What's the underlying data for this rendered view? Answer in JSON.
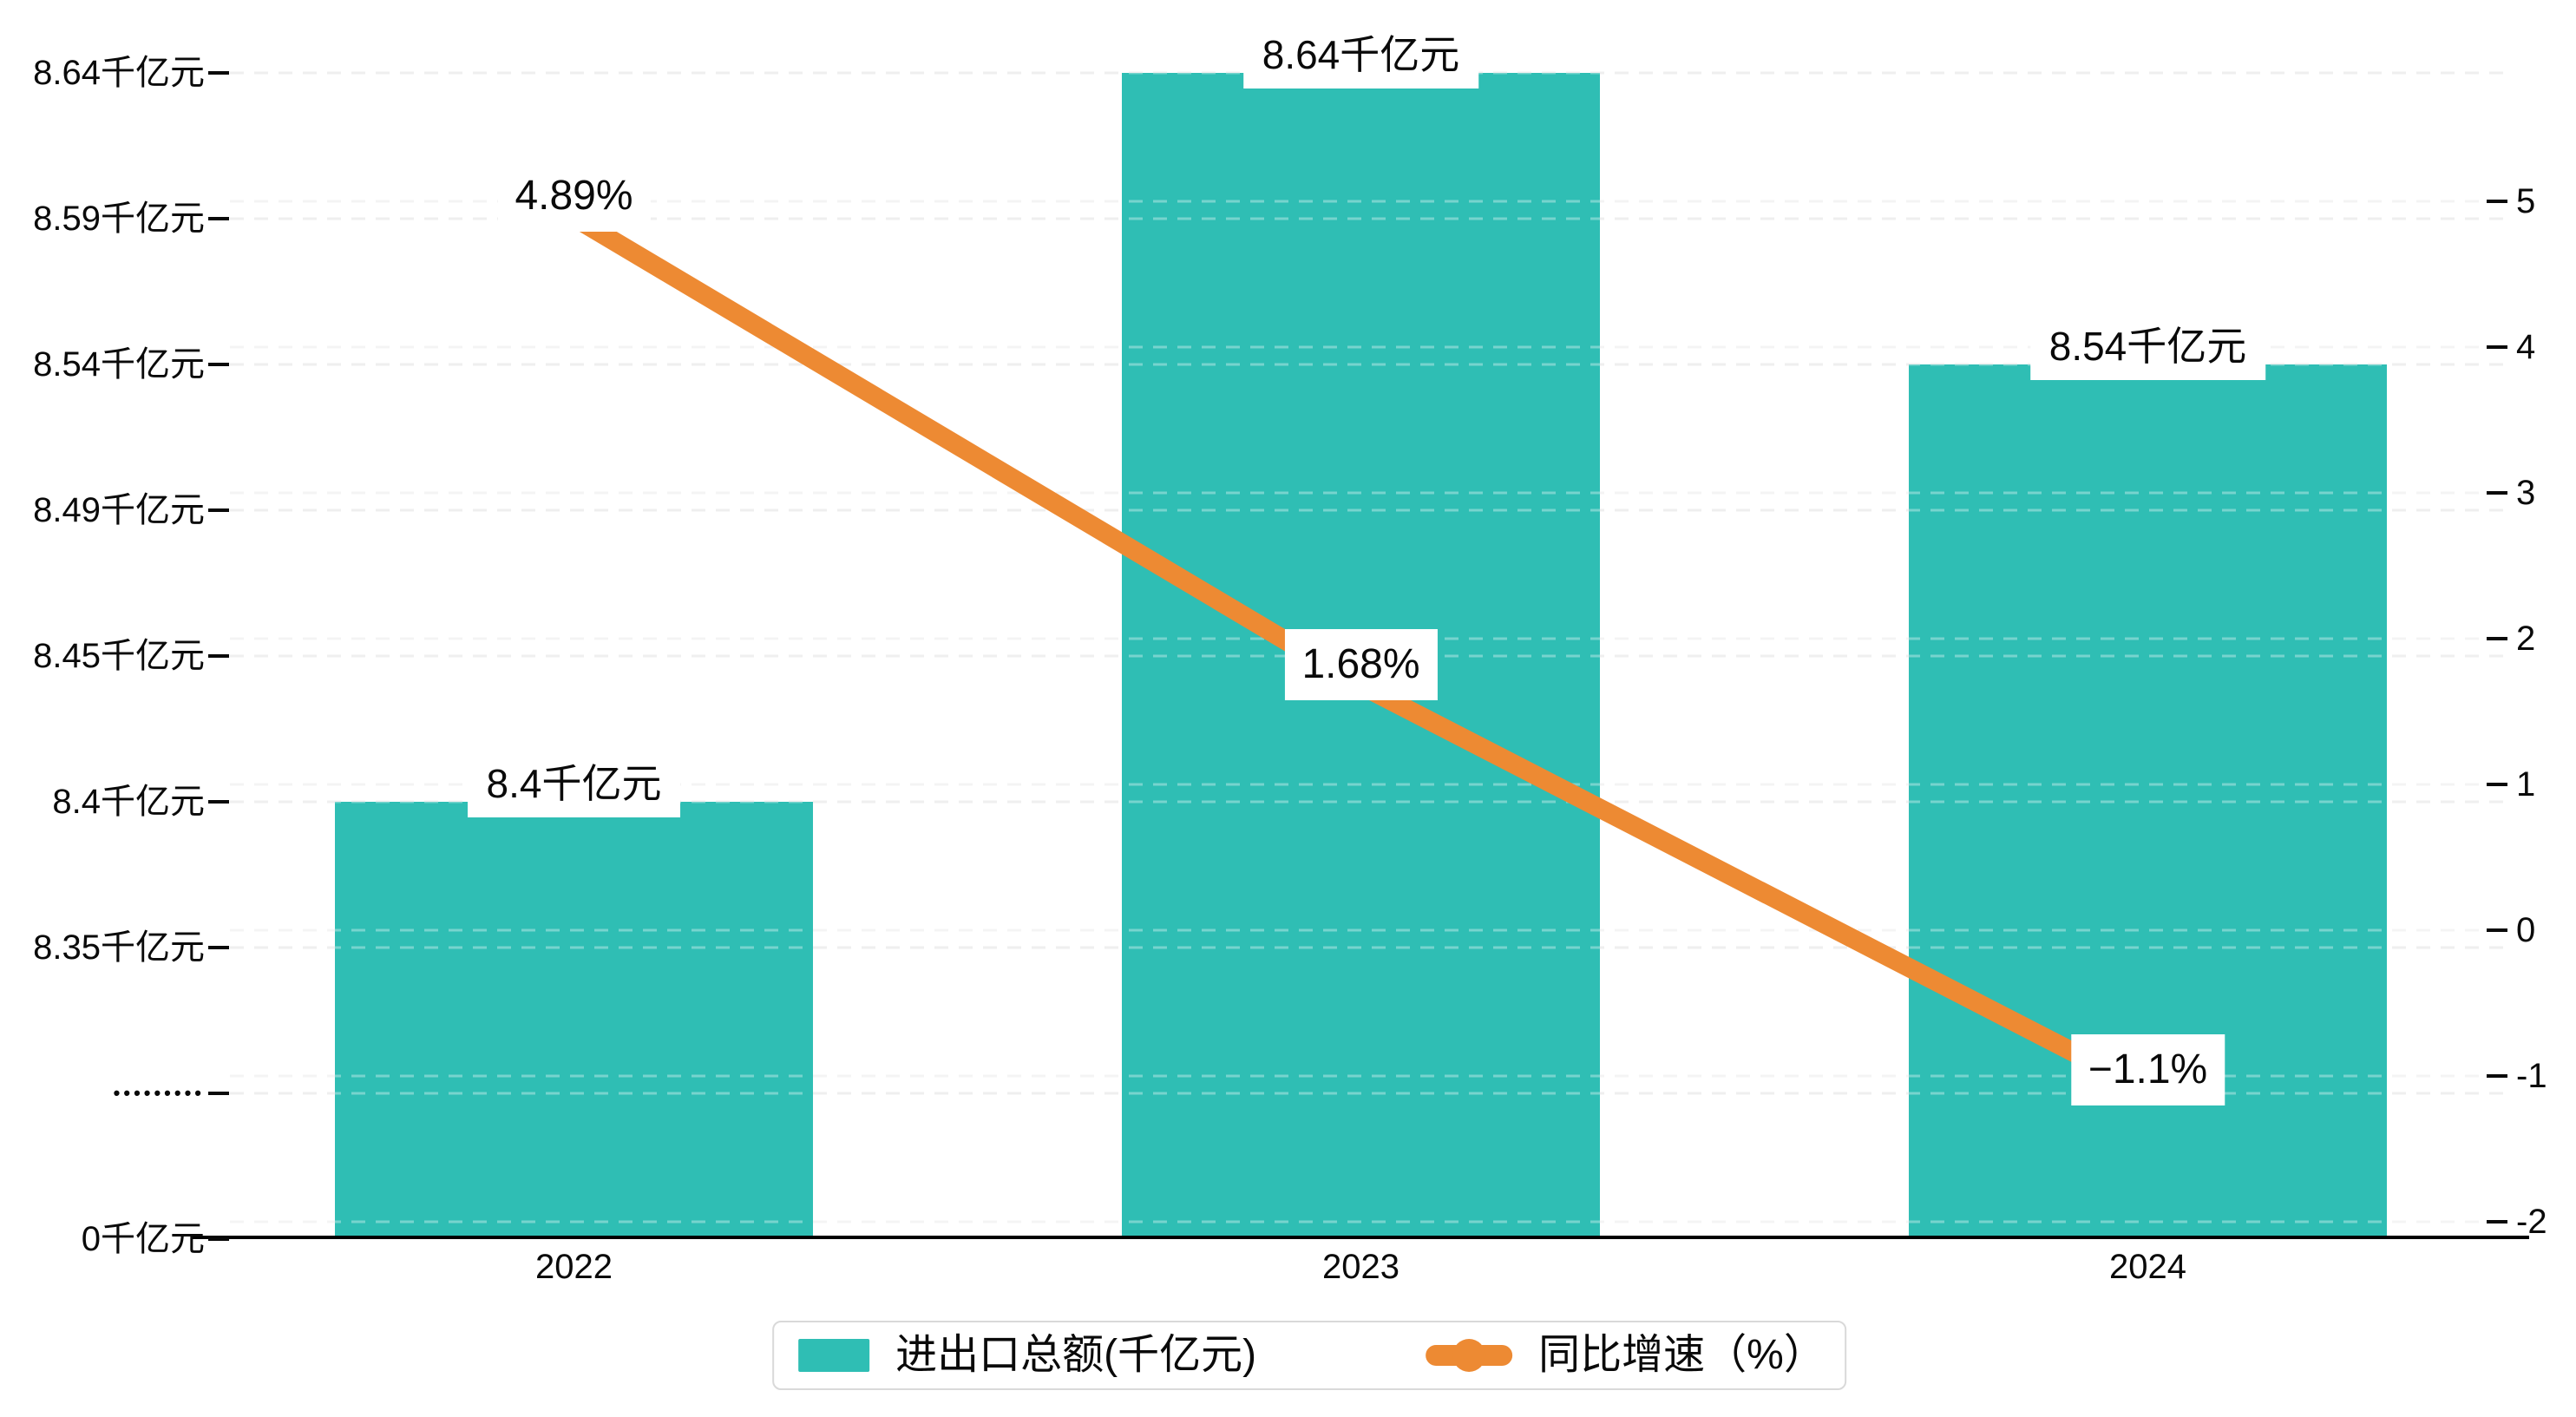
{
  "chart_data": {
    "type": "bar+line dual-axis",
    "categories": [
      "2022",
      "2023",
      "2024"
    ],
    "series": [
      {
        "name": "进出口总额(千亿元)",
        "type": "bar",
        "values": [
          8.4,
          8.64,
          8.54
        ],
        "data_labels": [
          "8.4千亿元",
          "8.64千亿元",
          "8.54千亿元"
        ],
        "color": "#2fbeb4",
        "yaxis": "left"
      },
      {
        "name": "同比增速（%）",
        "type": "line",
        "values": [
          4.89,
          1.68,
          -1.1
        ],
        "data_labels": [
          "4.89%",
          "1.68%",
          "−1.1%"
        ],
        "color": "#ed8a33",
        "yaxis": "right"
      }
    ],
    "left_axis": {
      "tick_labels": [
        "8.64千亿元",
        "8.59千亿元",
        "8.54千亿元",
        "8.49千亿元",
        "8.45千亿元",
        "8.4千亿元",
        "8.35千亿元",
        "•••••••••",
        "0千亿元"
      ],
      "tick_values": [
        8.64,
        8.59,
        8.54,
        8.49,
        8.45,
        8.4,
        8.35,
        null,
        0
      ],
      "has_axis_break": true
    },
    "right_axis": {
      "tick_labels": [
        "5",
        "4",
        "3",
        "2",
        "1",
        "0",
        "-1",
        "-2"
      ],
      "tick_values": [
        5,
        4,
        3,
        2,
        1,
        0,
        -1,
        -2
      ],
      "range": [
        -2,
        5
      ]
    },
    "grid": "double dashed horizontal gridlines (left-axis set and right-axis set)",
    "legend_position": "bottom-center"
  },
  "legend": {
    "items": [
      {
        "label": "进出口总额(千亿元)",
        "marker": "bar-swatch",
        "color": "#2fbeb4"
      },
      {
        "label": "同比增速（%）",
        "marker": "line-with-dot",
        "color": "#ed8a33"
      }
    ]
  },
  "colors": {
    "bar": "#2fbeb4",
    "line": "#ed8a33",
    "text": "#0a0a0a",
    "gridline": "#e7e7e7",
    "axis_line": "#000000",
    "legend_border": "#d9d9d9",
    "label_background": "#ffffff"
  }
}
